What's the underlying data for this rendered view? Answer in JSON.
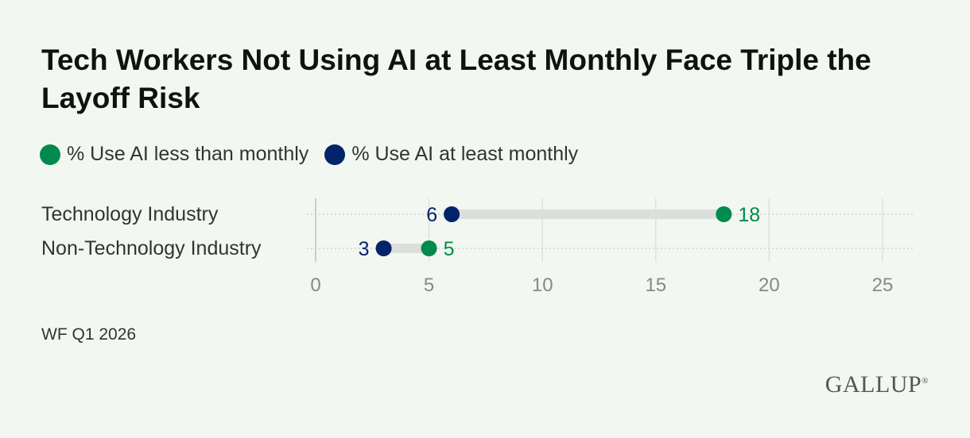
{
  "title": "Tech Workers Not Using AI at Least Monthly Face Triple the Layoff Risk",
  "legend": [
    {
      "label": "% Use AI less than monthly",
      "color": "#008a4b"
    },
    {
      "label": "% Use AI at least monthly",
      "color": "#03246b"
    }
  ],
  "source": "WF Q1 2026",
  "brand": "GALLUP",
  "chart_data": {
    "type": "dumbbell",
    "categories": [
      "Technology Industry",
      "Non-Technology Industry"
    ],
    "series": [
      {
        "name": "% Use AI less than monthly",
        "values": [
          18,
          5
        ]
      },
      {
        "name": "% Use AI at least monthly",
        "values": [
          6,
          3
        ]
      }
    ],
    "xlim": [
      0,
      25
    ],
    "xticks": [
      0,
      5,
      10,
      15,
      20,
      25
    ],
    "grid": true
  }
}
